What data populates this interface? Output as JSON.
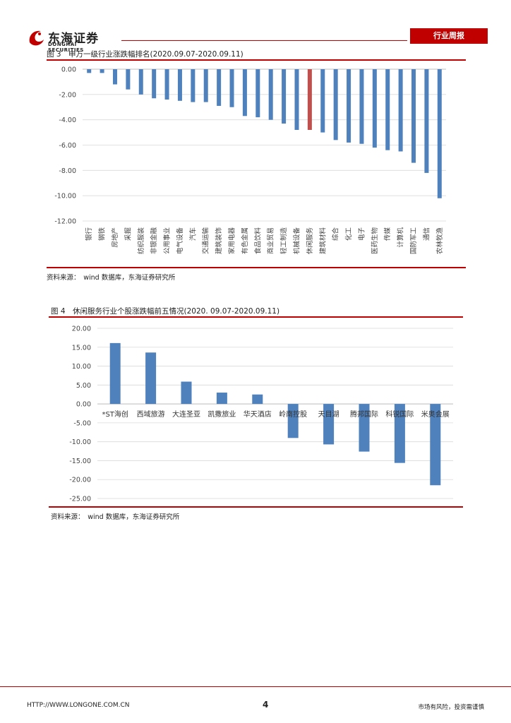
{
  "header": {
    "logo_cn": "东海证券",
    "logo_en": "DONGHAI SECURITIES",
    "tag": "行业周报"
  },
  "figure3": {
    "title": "图 3　申万一级行业涨跌幅排名(2020.09.07-2020.09.11)",
    "source": "资料来源：　wind 数据库，东海证券研究所"
  },
  "figure4": {
    "title": "图 4　休闲服务行业个股涨跌幅前五情况(2020. 09.07-2020.09.11)",
    "source": "资料来源：　wind 数据库，东海证券研究所"
  },
  "footer": {
    "url": "HTTP://WWW.LONGONE.COM.CN",
    "page": "4",
    "risk": "市场有风险，投资需谨慎"
  },
  "chart_data": [
    {
      "type": "bar",
      "categories": [
        "银行",
        "钢铁",
        "房地产",
        "采掘",
        "纺织服装",
        "非银金融",
        "公用事业",
        "电气设备",
        "汽车",
        "交通运输",
        "建筑装饰",
        "家用电器",
        "有色金属",
        "食品饮料",
        "商业贸易",
        "轻工制造",
        "机械设备",
        "休闲服务",
        "建筑材料",
        "综合",
        "化工",
        "电子",
        "医药生物",
        "传媒",
        "计算机",
        "国防军工",
        "通信",
        "农林牧渔"
      ],
      "values": [
        -0.3,
        -0.3,
        -1.2,
        -1.6,
        -2.0,
        -2.3,
        -2.4,
        -2.5,
        -2.6,
        -2.6,
        -2.9,
        -3.0,
        -3.7,
        -3.8,
        -4.0,
        -4.3,
        -4.8,
        -4.8,
        -5.0,
        -5.6,
        -5.8,
        -5.9,
        -6.2,
        -6.4,
        -6.5,
        -7.4,
        -8.2,
        -10.2
      ],
      "highlight": "休闲服务",
      "colors": {
        "bar": "#4f81bd",
        "highlight": "#c0504d"
      },
      "ylim": [
        -12,
        0
      ],
      "yticks": [
        "0.00",
        "-2.00",
        "-4.00",
        "-6.00",
        "-8.00",
        "-10.00",
        "-12.00"
      ],
      "grid": true
    },
    {
      "type": "bar",
      "categories": [
        "*ST海创",
        "西域旅游",
        "大连圣亚",
        "凯撒旅业",
        "华天酒店",
        "岭南控股",
        "天目湖",
        "腾邦国际",
        "科锐国际",
        "米奥会展"
      ],
      "values": [
        16.1,
        13.6,
        5.9,
        3.0,
        2.5,
        -9.0,
        -10.7,
        -12.6,
        -15.6,
        -21.5
      ],
      "colors": {
        "bar": "#4f81bd"
      },
      "ylim": [
        -25,
        20
      ],
      "yticks": [
        "20.00",
        "15.00",
        "10.00",
        "5.00",
        "0.00",
        "-5.00",
        "-10.00",
        "-15.00",
        "-20.00",
        "-25.00"
      ],
      "grid": true
    }
  ]
}
